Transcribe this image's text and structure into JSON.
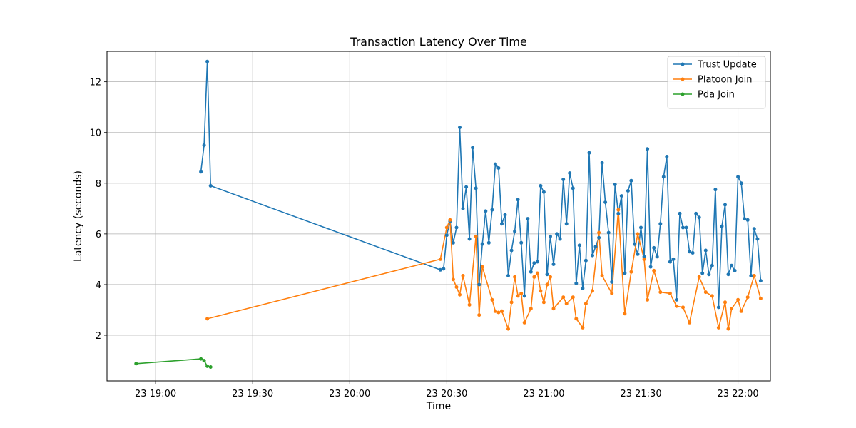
{
  "chart_data": {
    "type": "line",
    "title": "Transaction Latency Over Time",
    "xlabel": "Time",
    "ylabel": "Latency (seconds)",
    "xlim": [
      "23 18:45",
      "22:10"
    ],
    "ylim": [
      0.2,
      13.2
    ],
    "xticks": [
      "23 19:00",
      "23 19:30",
      "23 20:00",
      "23 20:30",
      "23 21:00",
      "23 21:30",
      "23 22:00"
    ],
    "yticks": [
      2,
      4,
      6,
      8,
      10,
      12
    ],
    "grid": true,
    "legend_position": "top-right",
    "series": [
      {
        "name": "Trust Update",
        "color": "#1f77b4",
        "points": [
          [
            "19:14",
            8.45
          ],
          [
            "19:15",
            9.5
          ],
          [
            "19:16",
            12.8
          ],
          [
            "19:17",
            7.9
          ],
          [
            "20:28",
            4.58
          ],
          [
            "20:29",
            4.62
          ],
          [
            "20:30",
            5.95
          ],
          [
            "20:31",
            6.5
          ],
          [
            "20:32",
            5.65
          ],
          [
            "20:33",
            6.25
          ],
          [
            "20:34",
            10.2
          ],
          [
            "20:35",
            7.0
          ],
          [
            "20:36",
            7.85
          ],
          [
            "20:37",
            5.8
          ],
          [
            "20:38",
            9.4
          ],
          [
            "20:39",
            7.8
          ],
          [
            "20:40",
            4.0
          ],
          [
            "20:41",
            5.6
          ],
          [
            "20:42",
            6.9
          ],
          [
            "20:43",
            5.65
          ],
          [
            "20:44",
            6.95
          ],
          [
            "20:45",
            8.75
          ],
          [
            "20:46",
            8.6
          ],
          [
            "20:47",
            6.4
          ],
          [
            "20:48",
            6.75
          ],
          [
            "20:49",
            4.35
          ],
          [
            "20:50",
            5.35
          ],
          [
            "20:51",
            6.1
          ],
          [
            "20:52",
            7.35
          ],
          [
            "20:53",
            5.65
          ],
          [
            "20:54",
            3.55
          ],
          [
            "20:55",
            6.6
          ],
          [
            "20:56",
            4.5
          ],
          [
            "20:57",
            4.85
          ],
          [
            "20:58",
            4.9
          ],
          [
            "20:59",
            7.9
          ],
          [
            "21:00",
            7.65
          ],
          [
            "21:01",
            4.4
          ],
          [
            "21:02",
            5.9
          ],
          [
            "21:03",
            4.8
          ],
          [
            "21:04",
            6.0
          ],
          [
            "21:05",
            5.8
          ],
          [
            "21:06",
            8.15
          ],
          [
            "21:07",
            6.4
          ],
          [
            "21:08",
            8.4
          ],
          [
            "21:09",
            7.8
          ],
          [
            "21:10",
            4.05
          ],
          [
            "21:11",
            5.55
          ],
          [
            "21:12",
            3.85
          ],
          [
            "21:13",
            4.95
          ],
          [
            "21:14",
            9.2
          ],
          [
            "21:15",
            5.15
          ],
          [
            "21:16",
            5.5
          ],
          [
            "21:17",
            5.85
          ],
          [
            "21:18",
            8.8
          ],
          [
            "21:19",
            7.25
          ],
          [
            "21:20",
            6.05
          ],
          [
            "21:21",
            4.1
          ],
          [
            "21:22",
            7.95
          ],
          [
            "21:23",
            6.8
          ],
          [
            "21:24",
            7.5
          ],
          [
            "21:25",
            4.45
          ],
          [
            "21:26",
            7.7
          ],
          [
            "21:27",
            8.1
          ],
          [
            "21:28",
            5.6
          ],
          [
            "21:29",
            5.2
          ],
          [
            "21:30",
            6.25
          ],
          [
            "21:31",
            5.1
          ],
          [
            "21:32",
            9.35
          ],
          [
            "21:33",
            4.7
          ],
          [
            "21:34",
            5.45
          ],
          [
            "21:35",
            5.1
          ],
          [
            "21:36",
            6.4
          ],
          [
            "21:37",
            8.25
          ],
          [
            "21:38",
            9.05
          ],
          [
            "21:39",
            4.9
          ],
          [
            "21:40",
            5.0
          ],
          [
            "21:41",
            3.4
          ],
          [
            "21:42",
            6.8
          ],
          [
            "21:43",
            6.25
          ],
          [
            "21:44",
            6.25
          ],
          [
            "21:45",
            5.3
          ],
          [
            "21:46",
            5.25
          ],
          [
            "21:47",
            6.8
          ],
          [
            "21:48",
            6.65
          ],
          [
            "21:49",
            4.45
          ],
          [
            "21:50",
            5.35
          ],
          [
            "21:51",
            4.4
          ],
          [
            "21:52",
            4.75
          ],
          [
            "21:53",
            7.75
          ],
          [
            "21:54",
            3.1
          ],
          [
            "21:55",
            6.3
          ],
          [
            "21:56",
            7.15
          ],
          [
            "21:57",
            4.4
          ],
          [
            "21:58",
            4.75
          ],
          [
            "21:59",
            4.55
          ],
          [
            "22:00",
            8.25
          ],
          [
            "22:01",
            8.0
          ],
          [
            "22:02",
            6.6
          ],
          [
            "22:03",
            6.55
          ],
          [
            "22:04",
            4.35
          ],
          [
            "22:05",
            6.2
          ],
          [
            "22:06",
            5.8
          ],
          [
            "22:07",
            4.15
          ]
        ]
      },
      {
        "name": "Platoon Join",
        "color": "#ff7f0e",
        "points": [
          [
            "19:16",
            2.65
          ],
          [
            "20:28",
            5.0
          ],
          [
            "20:30",
            6.25
          ],
          [
            "20:31",
            6.55
          ],
          [
            "20:32",
            4.2
          ],
          [
            "20:33",
            3.9
          ],
          [
            "20:34",
            3.6
          ],
          [
            "20:35",
            4.35
          ],
          [
            "20:37",
            3.2
          ],
          [
            "20:39",
            5.9
          ],
          [
            "20:40",
            2.8
          ],
          [
            "20:41",
            4.7
          ],
          [
            "20:44",
            3.4
          ],
          [
            "20:45",
            2.95
          ],
          [
            "20:46",
            2.9
          ],
          [
            "20:47",
            2.95
          ],
          [
            "20:49",
            2.25
          ],
          [
            "20:50",
            3.3
          ],
          [
            "20:51",
            4.3
          ],
          [
            "20:52",
            3.55
          ],
          [
            "20:53",
            3.65
          ],
          [
            "20:54",
            2.5
          ],
          [
            "20:56",
            3.05
          ],
          [
            "20:57",
            4.3
          ],
          [
            "20:58",
            4.45
          ],
          [
            "20:59",
            3.75
          ],
          [
            "21:00",
            3.3
          ],
          [
            "21:01",
            4.0
          ],
          [
            "21:02",
            4.3
          ],
          [
            "21:03",
            3.05
          ],
          [
            "21:06",
            3.5
          ],
          [
            "21:07",
            3.25
          ],
          [
            "21:09",
            3.5
          ],
          [
            "21:10",
            2.65
          ],
          [
            "21:12",
            2.3
          ],
          [
            "21:13",
            3.25
          ],
          [
            "21:15",
            3.75
          ],
          [
            "21:17",
            6.05
          ],
          [
            "21:18",
            4.35
          ],
          [
            "21:21",
            3.65
          ],
          [
            "21:23",
            6.95
          ],
          [
            "21:25",
            2.85
          ],
          [
            "21:27",
            4.5
          ],
          [
            "21:29",
            6.0
          ],
          [
            "21:31",
            5.0
          ],
          [
            "21:32",
            3.4
          ],
          [
            "21:34",
            4.55
          ],
          [
            "21:36",
            3.7
          ],
          [
            "21:39",
            3.65
          ],
          [
            "21:41",
            3.15
          ],
          [
            "21:43",
            3.1
          ],
          [
            "21:45",
            2.5
          ],
          [
            "21:48",
            4.3
          ],
          [
            "21:50",
            3.7
          ],
          [
            "21:52",
            3.55
          ],
          [
            "21:54",
            2.3
          ],
          [
            "21:56",
            3.3
          ],
          [
            "21:57",
            2.25
          ],
          [
            "21:58",
            3.05
          ],
          [
            "22:00",
            3.4
          ],
          [
            "22:01",
            2.95
          ],
          [
            "22:03",
            3.5
          ],
          [
            "22:05",
            4.35
          ],
          [
            "22:07",
            3.45
          ]
        ]
      },
      {
        "name": "Pda Join",
        "color": "#2ca02c",
        "points": [
          [
            "18:54",
            0.88
          ],
          [
            "19:14",
            1.07
          ],
          [
            "19:15",
            1.0
          ],
          [
            "19:16",
            0.78
          ],
          [
            "19:17",
            0.75
          ]
        ]
      }
    ]
  }
}
